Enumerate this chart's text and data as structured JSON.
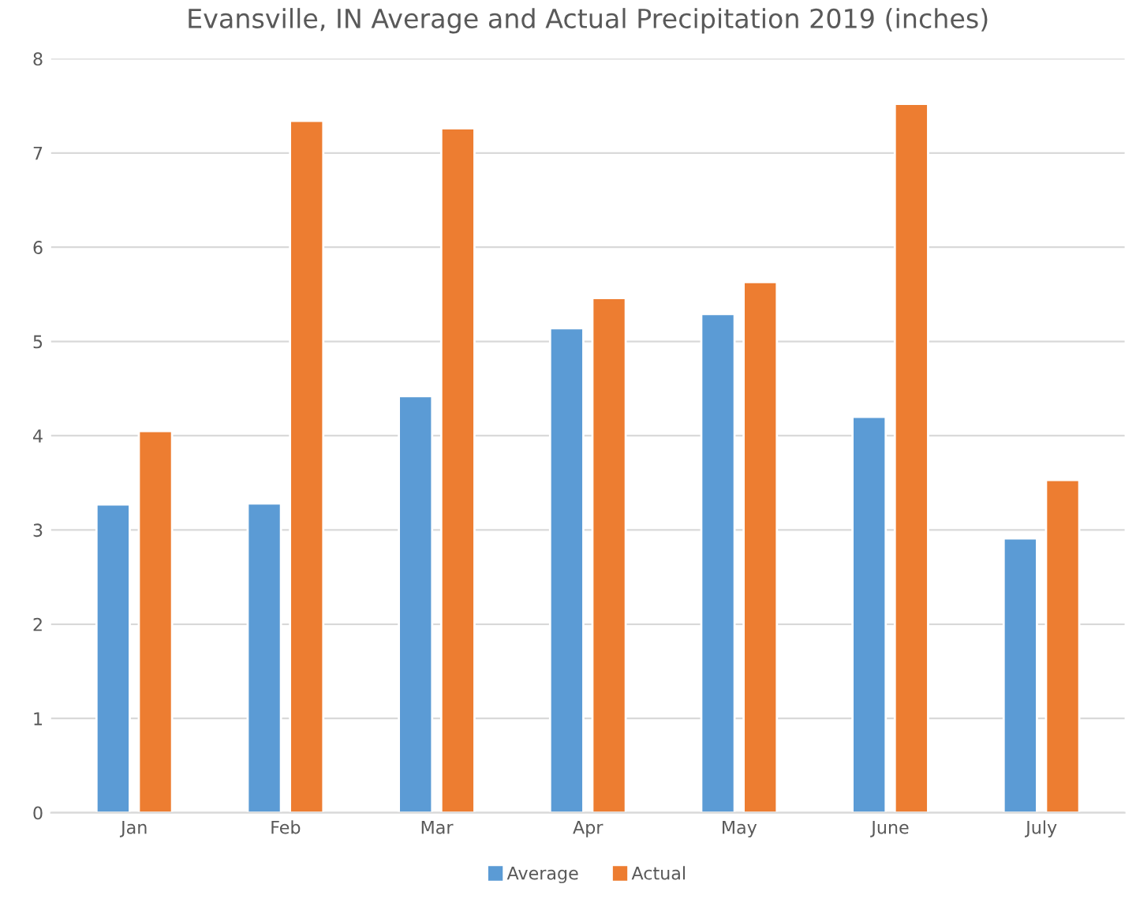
{
  "chart_data": {
    "type": "bar",
    "title": "Evansville, IN Average and Actual Precipitation 2019 (inches)",
    "categories": [
      "Jan",
      "Feb",
      "Mar",
      "Apr",
      "May",
      "June",
      "July"
    ],
    "series": [
      {
        "name": "Average",
        "color": "#5b9bd5",
        "values": [
          3.27,
          3.28,
          4.42,
          5.14,
          5.29,
          4.2,
          2.91
        ]
      },
      {
        "name": "Actual",
        "color": "#ed7d31",
        "values": [
          4.05,
          7.34,
          7.26,
          5.46,
          5.63,
          7.52,
          3.53
        ]
      }
    ],
    "ylim": [
      0,
      8
    ],
    "yticks": [
      0,
      1,
      2,
      3,
      4,
      5,
      6,
      7,
      8
    ],
    "grid": "y",
    "legend": "bottom"
  }
}
